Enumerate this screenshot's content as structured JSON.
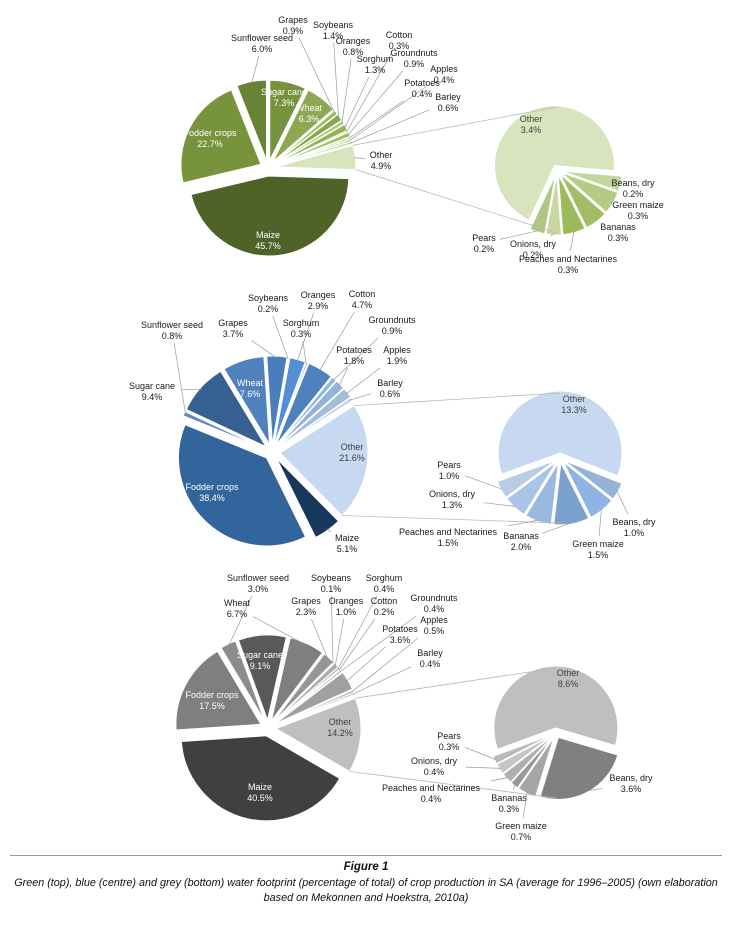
{
  "page": {
    "figure_label": "Figure 1",
    "caption": "Green (top), blue (centre) and grey (bottom) water footprint (percentage of total) of crop production in SA (average for 1996–2005) (own elaboration based on Mekonnen and Hoekstra, 2010a)"
  },
  "chart_data": [
    {
      "type": "pie",
      "variant": "pie-of-pie",
      "water_footprint_type": "green",
      "unit": "% of total",
      "main": {
        "categories": [
          "Sugar cane",
          "Wheat",
          "Grapes",
          "Soybeans",
          "Oranges",
          "Sorghum",
          "Cotton",
          "Groundnuts",
          "Potatoes",
          "Apples",
          "Barley",
          "Other",
          "Maize",
          "Fodder crops",
          "Sunflower seed"
        ],
        "values": [
          7.3,
          6.3,
          0.9,
          1.4,
          0.8,
          1.3,
          0.3,
          0.9,
          0.4,
          0.4,
          0.6,
          4.9,
          45.7,
          22.7,
          6.0
        ]
      },
      "secondary": {
        "categories": [
          "Other",
          "Beans, dry",
          "Green maize",
          "Bananas",
          "Peaches and Nectarines",
          "Onions, dry",
          "Pears"
        ],
        "values": [
          3.4,
          0.2,
          0.3,
          0.3,
          0.3,
          0.2,
          0.2
        ]
      },
      "colors": {
        "main": [
          "#76923C",
          "#8CA854",
          "#9BBB59",
          "#89A84E",
          "#AFC780",
          "#95B355",
          "#BCCF92",
          "#A3BC66",
          "#C3D69B",
          "#B8CC8A",
          "#CCDAA4",
          "#D7E4BD",
          "#4F6228",
          "#77933C",
          "#668433"
        ],
        "secondary": [
          "#D7E4BD",
          "#C3D69B",
          "#B4CB85",
          "#A3BC66",
          "#9BBB59",
          "#C9D79E",
          "#AFC780"
        ]
      }
    },
    {
      "type": "pie",
      "variant": "pie-of-pie",
      "water_footprint_type": "blue",
      "unit": "% of total",
      "main": {
        "categories": [
          "Sugar cane",
          "Wheat",
          "Grapes",
          "Soybeans",
          "Oranges",
          "Sorghum",
          "Cotton",
          "Groundnuts",
          "Potatoes",
          "Apples",
          "Barley",
          "Other",
          "Maize",
          "Fodder crops",
          "Sunflower seed"
        ],
        "values": [
          9.4,
          7.6,
          3.7,
          0.2,
          2.9,
          0.3,
          4.7,
          0.9,
          1.8,
          1.9,
          0.6,
          21.6,
          5.1,
          38.4,
          0.8
        ]
      },
      "secondary": {
        "categories": [
          "Other",
          "Beans, dry",
          "Green maize",
          "Bananas",
          "Peaches and Nectarines",
          "Onions, dry",
          "Pears"
        ],
        "values": [
          13.3,
          1.0,
          1.5,
          2.0,
          1.5,
          1.3,
          1.0
        ]
      },
      "colors": {
        "main": [
          "#366092",
          "#4F81BD",
          "#4A7EBB",
          "#6C96C8",
          "#558ED5",
          "#7FA8D4",
          "#4F81BD",
          "#8DB4E2",
          "#95B3D7",
          "#A3BEDC",
          "#B8CCE4",
          "#C6D9F1",
          "#17375D",
          "#31659B",
          "#5B8CC0"
        ],
        "secondary": [
          "#C6D9F1",
          "#95B3D7",
          "#8DB4E2",
          "#7BA2CF",
          "#99B9DE",
          "#A9C4E4",
          "#B8CCE4"
        ]
      }
    },
    {
      "type": "pie",
      "variant": "pie-of-pie",
      "water_footprint_type": "grey",
      "unit": "% of total",
      "main": {
        "categories": [
          "Sugar cane",
          "Wheat",
          "Grapes",
          "Soybeans",
          "Oranges",
          "Sorghum",
          "Cotton",
          "Groundnuts",
          "Potatoes",
          "Apples",
          "Barley",
          "Other",
          "Maize",
          "Fodder crops",
          "Sunflower seed"
        ],
        "values": [
          9.1,
          6.7,
          2.3,
          0.1,
          1.0,
          0.4,
          0.2,
          0.4,
          3.6,
          0.5,
          0.4,
          14.2,
          40.5,
          17.5,
          3.0
        ]
      },
      "secondary": {
        "categories": [
          "Other",
          "Beans, dry",
          "Green maize",
          "Bananas",
          "Peaches and Nectarines",
          "Onions, dry",
          "Pears"
        ],
        "values": [
          8.6,
          3.6,
          0.7,
          0.3,
          0.4,
          0.4,
          0.3
        ]
      },
      "colors": {
        "main": [
          "#595959",
          "#7F7F7F",
          "#969696",
          "#A6A6A6",
          "#ABABAB",
          "#9E9E9E",
          "#B5B5B5",
          "#ADADAD",
          "#A0A0A0",
          "#BDBDBD",
          "#C9C9C9",
          "#BFBFBF",
          "#404040",
          "#7F7F7F",
          "#8C8C8C"
        ],
        "secondary": [
          "#BFBFBF",
          "#808080",
          "#A6A6A6",
          "#999999",
          "#B0B0B0",
          "#C6C6C6",
          "#BABABA"
        ]
      }
    }
  ]
}
